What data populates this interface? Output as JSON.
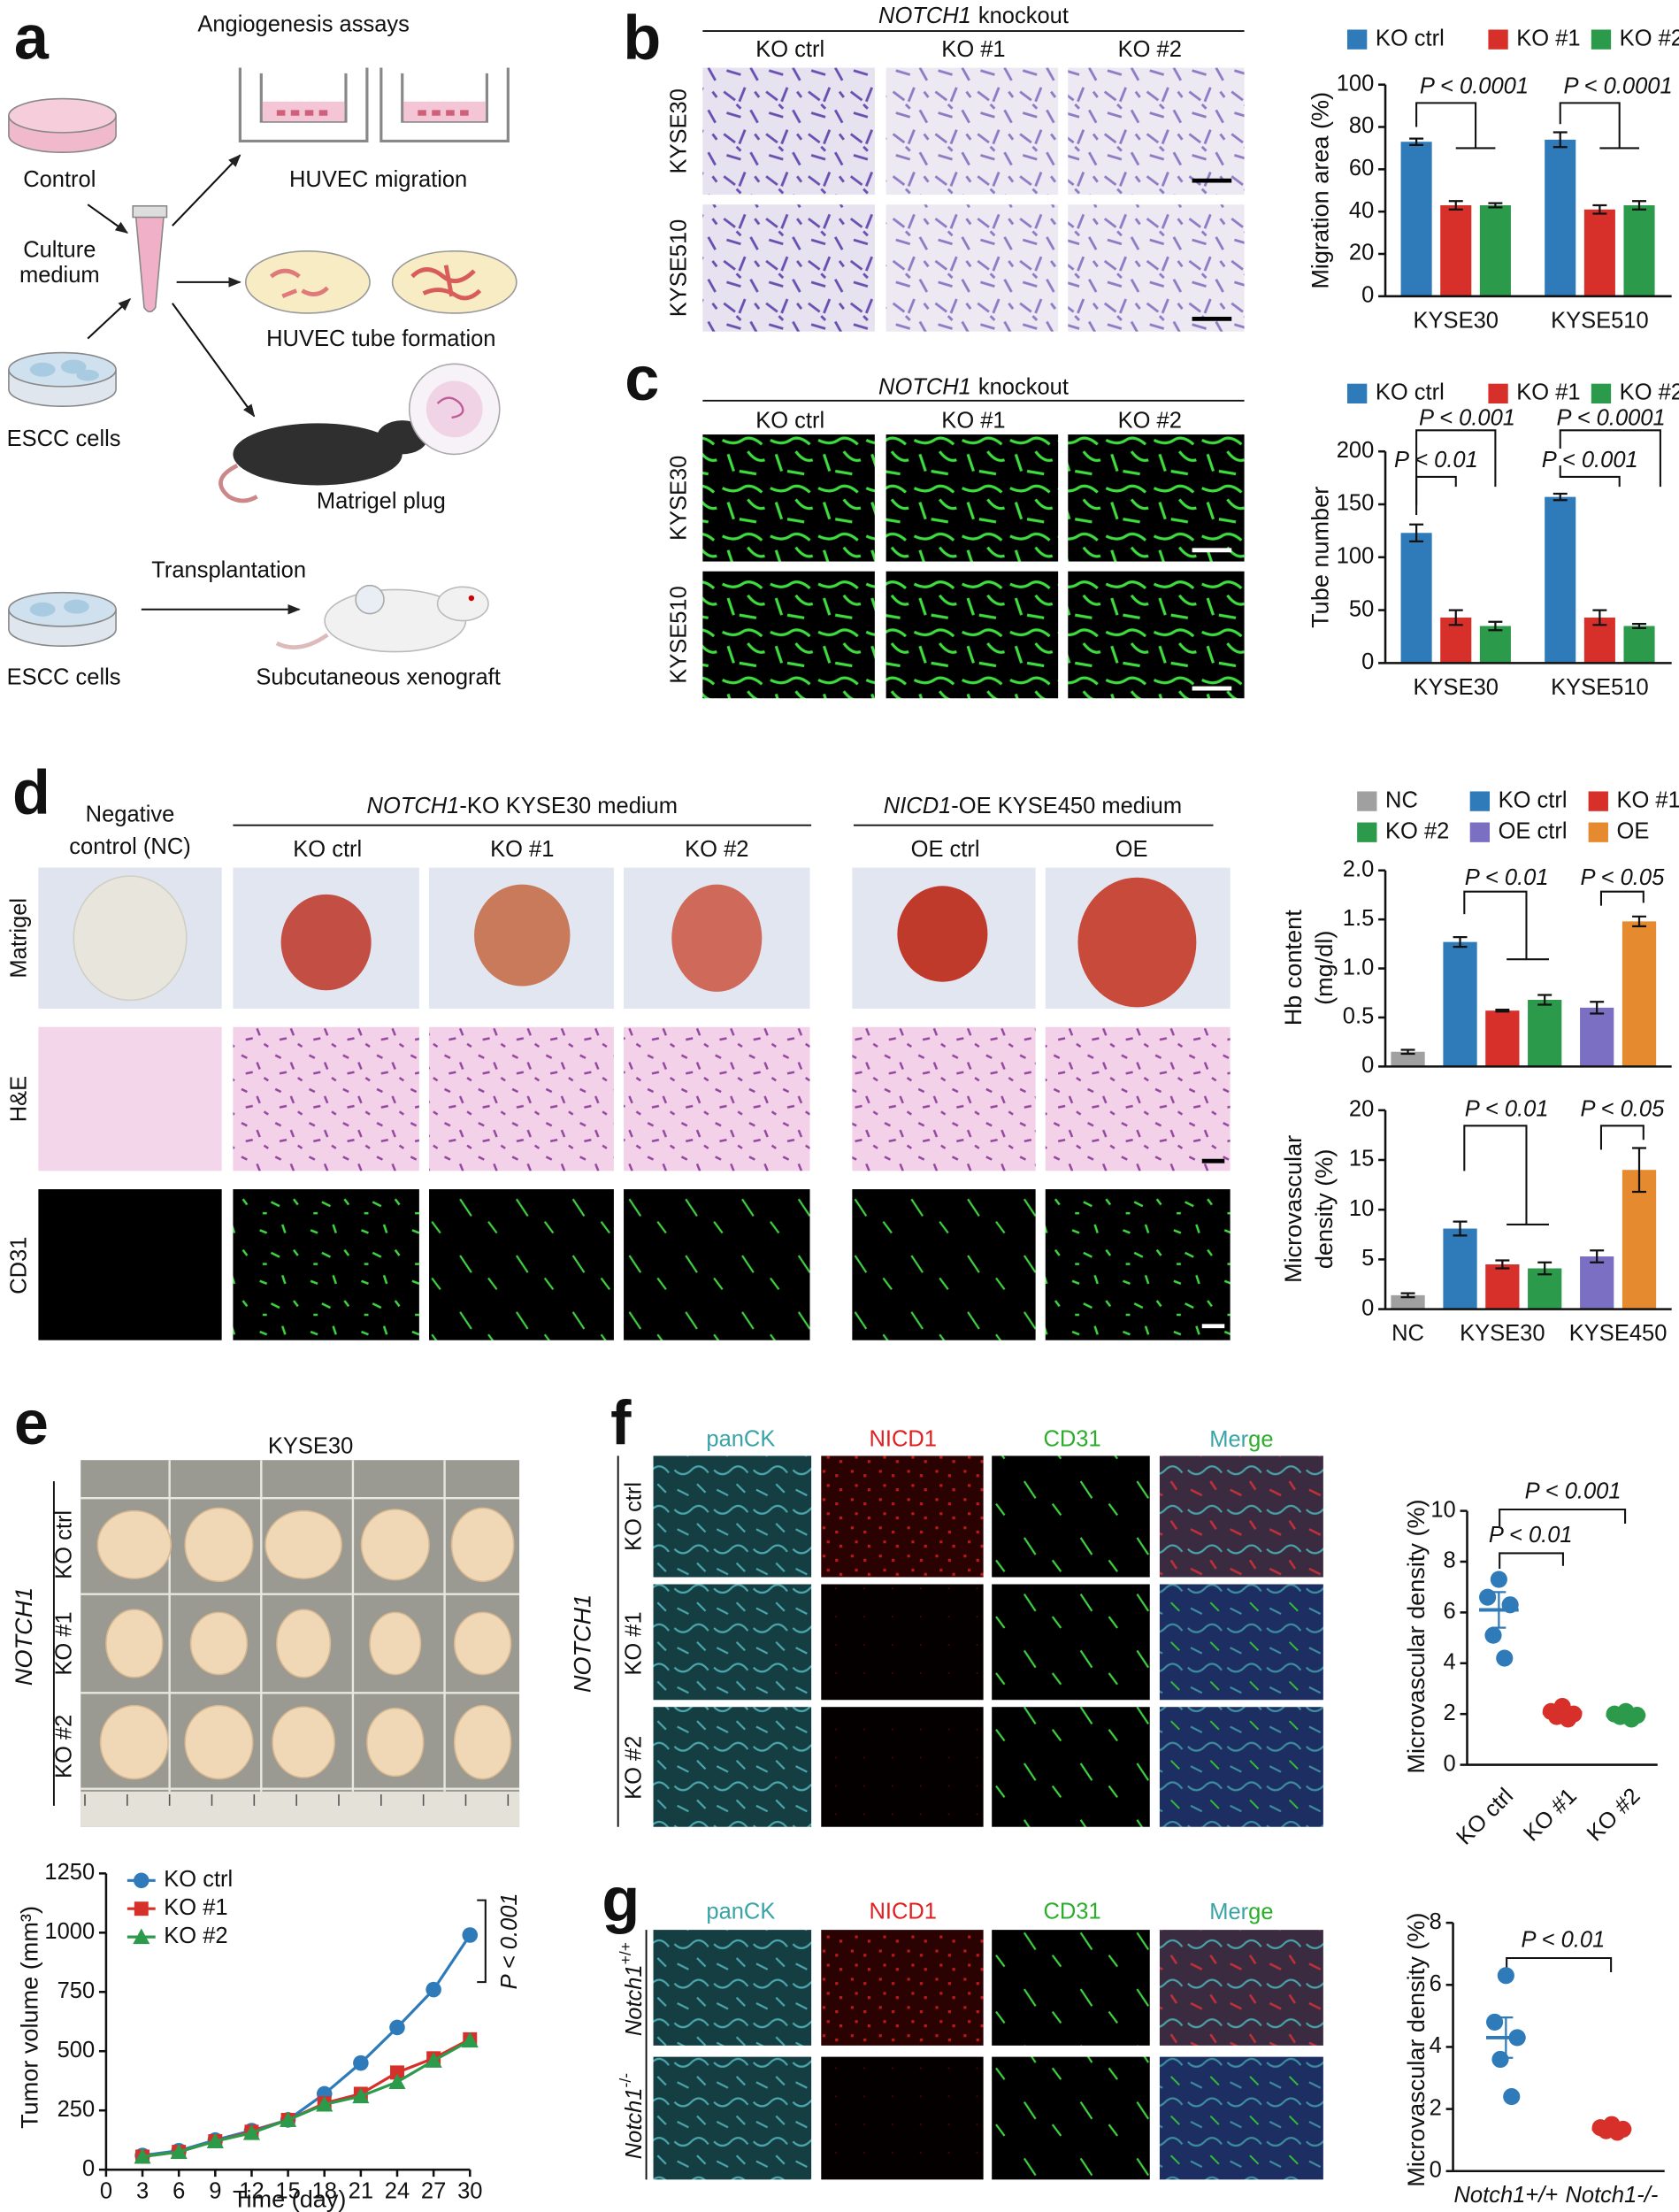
{
  "panel_letters": [
    "a",
    "b",
    "c",
    "d",
    "e",
    "f",
    "g"
  ],
  "a": {
    "title": "Angiogenesis assays",
    "control": "Control",
    "medium": [
      "Culture",
      "medium"
    ],
    "escc": "ESCC cells",
    "migration": "HUVEC migration",
    "tube": "HUVEC tube formation",
    "plug": "Matrigel plug",
    "transplantation": "Transplantation",
    "escc2": "ESCC cells",
    "xenograft": "Subcutaneous xenograft"
  },
  "b": {
    "header": {
      "gene": "NOTCH1",
      "text": "knockout"
    },
    "columns": [
      "KO ctrl",
      "KO #1",
      "KO #2"
    ],
    "rows": [
      "KYSE30",
      "KYSE510"
    ]
  },
  "c": {
    "header": {
      "gene": "NOTCH1",
      "text": "knockout"
    },
    "columns": [
      "KO ctrl",
      "KO #1",
      "KO #2"
    ],
    "rows": [
      "KYSE30",
      "KYSE510"
    ]
  },
  "d": {
    "nc": [
      "Negative",
      "control (NC)"
    ],
    "ko_header": {
      "gene": "NOTCH1",
      "text": "-KO KYSE30 medium"
    },
    "oe_header": {
      "gene": "NICD1",
      "text": "-OE KYSE450 medium"
    },
    "columns": [
      "KO ctrl",
      "KO #1",
      "KO #2",
      "OE ctrl",
      "OE"
    ],
    "rows": [
      "Matrigel",
      "H&E",
      "CD31"
    ]
  },
  "e": {
    "title": "KYSE30",
    "rows": [
      "KO ctrl",
      "KO #1",
      "KO #2"
    ],
    "gene": "NOTCH1"
  },
  "f": {
    "columns": [
      "panCK",
      "NICD1",
      "CD31"
    ],
    "merge": [
      "Mer",
      "ge"
    ],
    "rows": [
      "KO ctrl",
      "KO #1",
      "KO #2"
    ],
    "gene": "NOTCH1"
  },
  "g": {
    "columns": [
      "panCK",
      "NICD1",
      "CD31"
    ],
    "merge": [
      "Mer",
      "ge"
    ],
    "rows": [
      {
        "gene": "Notch1",
        "sup": "+/+"
      },
      {
        "gene": "Notch1",
        "sup": "-/-"
      }
    ]
  },
  "chart_data": [
    {
      "type": "bar",
      "ylabel": "Migration area (%)",
      "categories": [
        "KYSE30",
        "KYSE510"
      ],
      "series": [
        {
          "name": "KO ctrl",
          "color": "#2f7ab9",
          "values": [
            73,
            74
          ],
          "errors": [
            1.5,
            3.5
          ]
        },
        {
          "name": "KO #1",
          "color": "#d7302a",
          "values": [
            43,
            41
          ],
          "errors": [
            2,
            2
          ]
        },
        {
          "name": "KO #2",
          "color": "#2c9a4b",
          "values": [
            43,
            43
          ],
          "errors": [
            1,
            2
          ]
        }
      ],
      "ylim": [
        0,
        100
      ],
      "yticks": [
        0,
        20,
        40,
        60,
        80,
        100
      ],
      "annotations": [
        "P < 0.0001",
        "P < 0.0001"
      ]
    },
    {
      "type": "bar",
      "ylabel": "Tube number",
      "categories": [
        "KYSE30",
        "KYSE510"
      ],
      "series": [
        {
          "name": "KO ctrl",
          "color": "#2f7ab9",
          "values": [
            123,
            157
          ],
          "errors": [
            8,
            3
          ]
        },
        {
          "name": "KO #1",
          "color": "#d7302a",
          "values": [
            43,
            43
          ],
          "errors": [
            7,
            7
          ]
        },
        {
          "name": "KO #2",
          "color": "#2c9a4b",
          "values": [
            35,
            35
          ],
          "errors": [
            4,
            2
          ]
        }
      ],
      "ylim": [
        0,
        200
      ],
      "yticks": [
        0,
        50,
        100,
        150,
        200
      ],
      "annotations": [
        "P < 0.001",
        "P < 0.0001",
        "P < 0.01",
        "P < 0.001"
      ]
    },
    {
      "type": "bar",
      "ylabel": [
        "Hb content",
        "(mg/dl)"
      ],
      "categories": [
        null,
        null,
        null
      ],
      "series": [
        {
          "name": "NC",
          "color": "#a0a0a0",
          "values": [
            0.15,
            null,
            null
          ],
          "errors": [
            0.02,
            null,
            null
          ]
        },
        {
          "name": "KO ctrl",
          "color": "#2f7ab9",
          "values": [
            null,
            1.27,
            null
          ],
          "errors": [
            null,
            0.05,
            null
          ]
        },
        {
          "name": "KO #1",
          "color": "#d7302a",
          "values": [
            null,
            0.57,
            null
          ],
          "errors": [
            null,
            0.01,
            null
          ]
        },
        {
          "name": "KO #2",
          "color": "#2c9a4b",
          "values": [
            null,
            0.68,
            null
          ],
          "errors": [
            null,
            0.05,
            null
          ]
        },
        {
          "name": "OE ctrl",
          "color": "#7b6fc4",
          "values": [
            null,
            null,
            0.6
          ],
          "errors": [
            null,
            null,
            0.06
          ]
        },
        {
          "name": "OE",
          "color": "#e58a2e",
          "values": [
            null,
            null,
            1.48
          ],
          "errors": [
            null,
            null,
            0.05
          ]
        }
      ],
      "ylim": [
        0,
        2
      ],
      "yticks": [
        0,
        0.5,
        {
          "value": 1,
          "label": "1.0"
        },
        1.5,
        {
          "value": 2,
          "label": "2.0"
        }
      ],
      "annotations": [
        "P < 0.01",
        "P < 0.05"
      ]
    },
    {
      "type": "bar",
      "ylabel": [
        "Microvascular",
        "density (%)"
      ],
      "categories": [
        "NC",
        "KYSE30",
        "KYSE450"
      ],
      "series": [
        {
          "color": "#a0a0a0",
          "values": [
            1.4,
            null,
            null
          ],
          "errors": [
            0.2,
            null,
            null
          ]
        },
        {
          "color": "#2f7ab9",
          "values": [
            null,
            8.1,
            null
          ],
          "errors": [
            null,
            0.7,
            null
          ]
        },
        {
          "color": "#d7302a",
          "values": [
            null,
            4.5,
            null
          ],
          "errors": [
            null,
            0.4,
            null
          ]
        },
        {
          "color": "#2c9a4b",
          "values": [
            null,
            4.1,
            null
          ],
          "errors": [
            null,
            0.6,
            null
          ]
        },
        {
          "color": "#7b6fc4",
          "values": [
            null,
            null,
            5.3
          ],
          "errors": [
            null,
            null,
            0.6
          ]
        },
        {
          "color": "#e58a2e",
          "values": [
            null,
            null,
            14
          ],
          "errors": [
            null,
            null,
            2.2
          ]
        }
      ],
      "ylim": [
        0,
        20
      ],
      "yticks": [
        0,
        5,
        10,
        15,
        20
      ],
      "annotations": [
        "P < 0.01",
        "P < 0.05"
      ]
    },
    {
      "type": "line",
      "ylabel": "Tumor volume (mm³)",
      "xlabel": "Time (day)",
      "x": [
        3,
        6,
        9,
        12,
        15,
        18,
        21,
        24,
        27,
        30
      ],
      "series": [
        {
          "name": "KO ctrl",
          "color": "#2f7ab9",
          "marker": "circle",
          "values": [
            60,
            80,
            125,
            165,
            210,
            320,
            450,
            600,
            760,
            990
          ]
        },
        {
          "name": "KO #1",
          "color": "#d7302a",
          "marker": "square",
          "values": [
            55,
            75,
            120,
            160,
            210,
            280,
            320,
            410,
            470,
            550
          ]
        },
        {
          "name": "KO #2",
          "color": "#2c9a4b",
          "marker": "triangle",
          "values": [
            55,
            75,
            120,
            155,
            210,
            275,
            310,
            370,
            460,
            545
          ]
        }
      ],
      "xlim": [
        0,
        30
      ],
      "xticks": [
        0,
        3,
        6,
        9,
        12,
        15,
        18,
        21,
        24,
        27,
        30
      ],
      "ylim": [
        0,
        1250
      ],
      "yticks": [
        0,
        250,
        500,
        750,
        1000,
        1250
      ],
      "annotations": [
        "P < 0.001"
      ]
    },
    {
      "type": "dot",
      "ylabel": "Microvascular density (%)",
      "categories": [
        "KO ctrl",
        "KO #1",
        "KO #2"
      ],
      "colors": [
        "#2f7ab9",
        "#d7302a",
        "#2c9a4b"
      ],
      "values": [
        6.1,
        2.05,
        1.95
      ],
      "errors": [
        0.7,
        0.1,
        0.08
      ],
      "points": [
        [
          7.3,
          6.6,
          6.3,
          5.1,
          4.2
        ],
        [
          2.3,
          2.1,
          2.0,
          1.9,
          1.8
        ],
        [
          2.1,
          2.0,
          1.95,
          1.9,
          1.8
        ]
      ],
      "ylim": [
        0,
        10
      ],
      "yticks": [
        0,
        2,
        4,
        6,
        8,
        10
      ],
      "annotations": [
        "P < 0.001",
        "P < 0.01"
      ]
    },
    {
      "type": "dot",
      "ylabel": "Microvascular density (%)",
      "categories": [
        "Notch1+/+",
        "Notch1-/-"
      ],
      "colors": [
        "#2f7ab9",
        "#d7302a"
      ],
      "values": [
        4.3,
        1.35
      ],
      "errors": [
        0.65,
        0.06
      ],
      "points": [
        [
          6.3,
          4.8,
          4.3,
          3.6,
          2.4
        ],
        [
          1.5,
          1.4,
          1.35,
          1.3,
          1.25
        ]
      ],
      "ylim": [
        0,
        8
      ],
      "yticks": [
        0,
        2,
        4,
        6,
        8
      ],
      "annotations": [
        "P < 0.01"
      ]
    }
  ]
}
